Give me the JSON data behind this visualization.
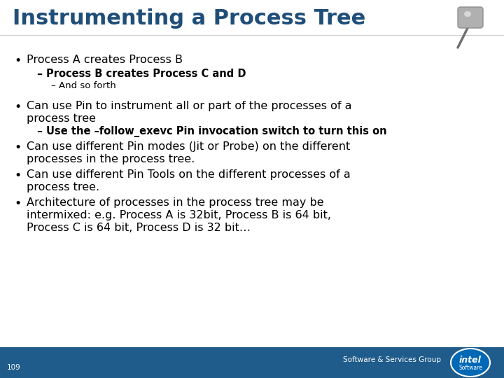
{
  "title": "Instrumenting a Process Tree",
  "title_color": "#1F4E79",
  "background_color": "#FFFFFF",
  "footer_color": "#1F5C8B",
  "footer_text": "Software & Services Group",
  "page_number": "109",
  "bullet1": "Process A creates Process B",
  "sub_bullet1": "Process B creates Process C and D",
  "sub_sub_bullet1": "And so forth",
  "bullet2_line1": "Can use Pin to instrument all or part of the processes of a",
  "bullet2_line2": "process tree",
  "sub_bullet2": "Use the –follow_exevc Pin invocation switch to turn this on",
  "bullet3_line1": "Can use different Pin modes (Jit or Probe) on the different",
  "bullet3_line2": "processes in the process tree.",
  "bullet4_line1": "Can use different Pin Tools on the different processes of a",
  "bullet4_line2": "process tree.",
  "bullet5_line1": "Architecture of processes in the process tree may be",
  "bullet5_line2": "intermixed: e.g. Process A is 32bit, Process B is 64 bit,",
  "bullet5_line3": "Process C is 64 bit, Process D is 32 bit…",
  "fs_title": 22,
  "fs_bullet": 11.5,
  "fs_sub": 10.5,
  "fs_subsub": 9.5,
  "fs_footer": 7.5,
  "fs_pagenum": 7.5
}
